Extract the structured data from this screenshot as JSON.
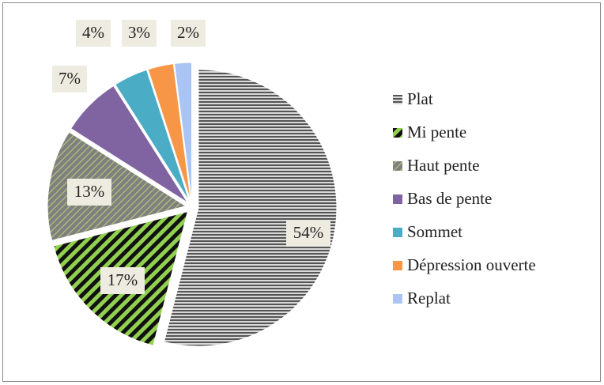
{
  "chart_data": {
    "type": "pie",
    "categories": [
      "Plat",
      "Mi pente",
      "Haut pente",
      "Bas de pente",
      "Sommet",
      "Dépression ouverte",
      "Replat"
    ],
    "values": [
      54,
      17,
      13,
      7,
      4,
      3,
      2
    ],
    "value_labels": [
      "54%",
      "17%",
      "13%",
      "7%",
      "4%",
      "3%",
      "2%"
    ],
    "colors": [
      "#7f7f7f",
      "#92d050",
      "#7f7f7f",
      "#8064a2",
      "#4bacc6",
      "#f79646",
      "#a9c4f5"
    ],
    "legend": "right"
  }
}
